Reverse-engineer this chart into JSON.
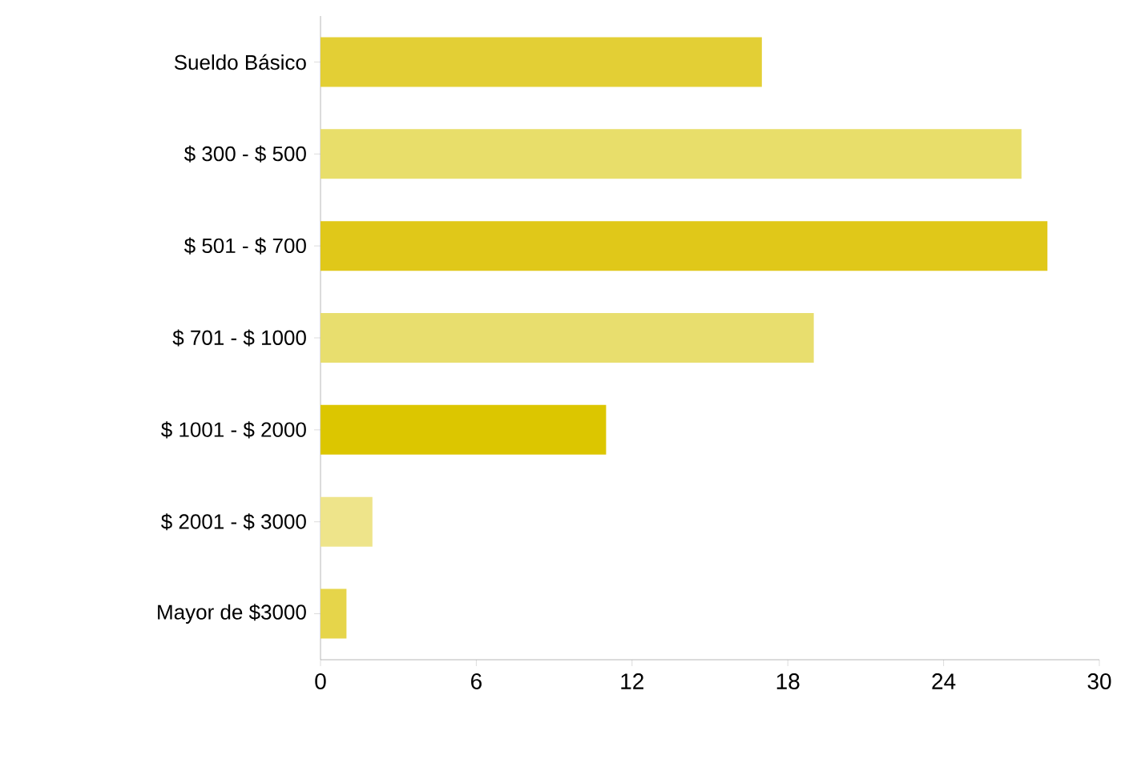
{
  "chart_data": {
    "type": "bar",
    "orientation": "horizontal",
    "categories": [
      "Sueldo Básico",
      "$ 300 - $ 500",
      "$ 501 - $ 700",
      "$ 701 - $ 1000",
      "$ 1001 - $ 2000",
      "$ 2001 - $ 3000",
      "Mayor de $3000"
    ],
    "values": [
      17,
      27,
      28,
      19,
      11,
      2,
      1
    ],
    "colors": [
      "#e3cf35",
      "#e8de6a",
      "#e0c819",
      "#e8de6e",
      "#dcc600",
      "#eee48a",
      "#e6d54a"
    ],
    "xlim": [
      0,
      30
    ],
    "xticks": [
      0,
      6,
      12,
      18,
      24,
      30
    ]
  }
}
